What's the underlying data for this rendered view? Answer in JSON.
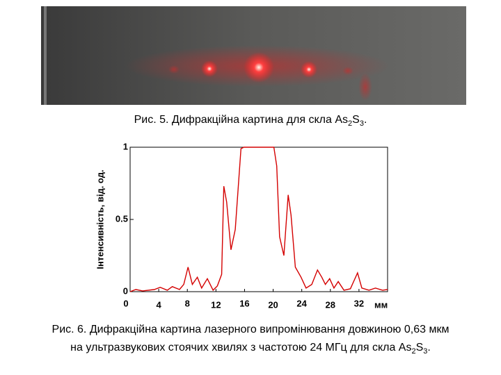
{
  "figure5_caption": [
    "Рис. 5. Дифракційна картина для скла As",
    "2",
    "S",
    "3",
    "."
  ],
  "figure6_caption": {
    "line1": "Рис. 6. Дифракційна картина лазерного випромінювання довжиною 0,63 мкм",
    "line2": [
      "на ультразвукових стоячих хвилях з частотою 24 МГц для скла As",
      "2",
      "S",
      "3",
      "."
    ]
  },
  "chart_data": {
    "type": "line",
    "y_label": "Інтенсивність, від. од.",
    "x_label": "мм",
    "color": "#d40000",
    "x": [
      0,
      0.8,
      1.75,
      3.4,
      4.2,
      5.2,
      5.9,
      6.9,
      7.5,
      8.1,
      8.7,
      9.4,
      10.0,
      10.8,
      11.6,
      12.2,
      12.8,
      13.1,
      13.5,
      14.1,
      14.7,
      15.5,
      15.9,
      20.1,
      20.5,
      20.9,
      21.5,
      22.1,
      22.5,
      23.1,
      23.9,
      24.6,
      25.4,
      26.2,
      26.8,
      27.3,
      27.9,
      28.5,
      29.1,
      29.9,
      30.8,
      31.8,
      32.4,
      33.4,
      34.3,
      35.3,
      36
    ],
    "values": [
      0,
      0.015,
      0.005,
      0.015,
      0.03,
      0.01,
      0.035,
      0.015,
      0.05,
      0.17,
      0.05,
      0.1,
      0.025,
      0.09,
      0.01,
      0.04,
      0.12,
      0.73,
      0.62,
      0.29,
      0.43,
      0.99,
      1,
      1,
      0.87,
      0.38,
      0.25,
      0.67,
      0.53,
      0.17,
      0.1,
      0.025,
      0.05,
      0.15,
      0.1,
      0.05,
      0.09,
      0.025,
      0.07,
      0.01,
      0.02,
      0.13,
      0.025,
      0.01,
      0.025,
      0.01,
      0.015
    ],
    "xlim": [
      0,
      36
    ],
    "ylim": [
      0,
      1
    ],
    "xticks": [
      0,
      4,
      8,
      12,
      16,
      20,
      24,
      28,
      32
    ],
    "yticks": [
      0,
      0.5,
      1
    ]
  }
}
